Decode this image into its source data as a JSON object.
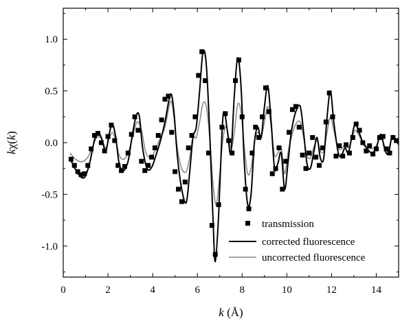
{
  "chart_data": {
    "type": "line",
    "xlabel_parts": [
      "k",
      " (Å)"
    ],
    "ylabel_parts": [
      "k",
      "χ(",
      "k",
      ")"
    ],
    "xlim": [
      0,
      15
    ],
    "ylim": [
      -1.3,
      1.3
    ],
    "x_ticks": [
      0,
      2,
      4,
      6,
      8,
      10,
      12,
      14
    ],
    "x_tick_labels": [
      "0",
      "2",
      "4",
      "6",
      "8",
      "10",
      "12",
      "14"
    ],
    "y_ticks": [
      -1.0,
      -0.5,
      0.0,
      0.5,
      1.0
    ],
    "y_tick_labels": [
      "-1.0",
      "-0.5",
      "0.0",
      "0.5",
      "1.0"
    ],
    "legend_position": "bottom-right",
    "series": [
      {
        "name": "transmission",
        "style": "markers",
        "color": "#000000",
        "x": [
          0.35,
          0.5,
          0.65,
          0.8,
          0.95,
          1.1,
          1.25,
          1.4,
          1.55,
          1.7,
          1.85,
          2.0,
          2.15,
          2.3,
          2.45,
          2.6,
          2.75,
          2.9,
          3.05,
          3.2,
          3.35,
          3.5,
          3.65,
          3.8,
          3.95,
          4.1,
          4.25,
          4.4,
          4.55,
          4.7,
          4.85,
          5.0,
          5.15,
          5.3,
          5.45,
          5.6,
          5.75,
          5.9,
          6.05,
          6.2,
          6.35,
          6.5,
          6.65,
          6.8,
          6.95,
          7.1,
          7.25,
          7.4,
          7.55,
          7.7,
          7.85,
          8.0,
          8.15,
          8.3,
          8.45,
          8.6,
          8.75,
          8.9,
          9.05,
          9.2,
          9.35,
          9.5,
          9.65,
          9.8,
          9.95,
          10.1,
          10.25,
          10.4,
          10.55,
          10.7,
          10.85,
          11.0,
          11.15,
          11.3,
          11.45,
          11.6,
          11.75,
          11.9,
          12.05,
          12.2,
          12.35,
          12.5,
          12.65,
          12.8,
          12.95,
          13.1,
          13.25,
          13.4,
          13.55,
          13.7,
          13.85,
          14.0,
          14.15,
          14.3,
          14.45,
          14.6,
          14.75,
          14.9
        ],
        "y": [
          -0.16,
          -0.22,
          -0.28,
          -0.31,
          -0.3,
          -0.22,
          -0.06,
          0.07,
          0.09,
          0.0,
          -0.08,
          0.06,
          0.17,
          0.02,
          -0.22,
          -0.27,
          -0.23,
          -0.1,
          0.08,
          0.25,
          0.12,
          -0.18,
          -0.27,
          -0.22,
          -0.14,
          -0.05,
          0.07,
          0.22,
          0.42,
          0.45,
          0.1,
          -0.28,
          -0.45,
          -0.57,
          -0.38,
          -0.05,
          0.07,
          0.25,
          0.65,
          0.88,
          0.6,
          -0.1,
          -0.8,
          -1.08,
          -0.6,
          0.15,
          0.28,
          0.02,
          -0.1,
          0.6,
          0.8,
          0.25,
          -0.45,
          -0.64,
          -0.1,
          0.15,
          0.05,
          0.25,
          0.53,
          0.3,
          -0.3,
          -0.25,
          -0.05,
          -0.45,
          -0.18,
          0.1,
          0.32,
          0.35,
          0.15,
          -0.12,
          -0.25,
          -0.1,
          0.05,
          -0.14,
          -0.22,
          -0.05,
          0.2,
          0.48,
          0.25,
          -0.13,
          -0.03,
          -0.13,
          -0.02,
          -0.1,
          0.05,
          0.18,
          0.12,
          0.0,
          -0.08,
          -0.03,
          -0.11,
          -0.06,
          0.05,
          0.06,
          -0.06,
          -0.1,
          0.05,
          0.02
        ]
      },
      {
        "name": "corrected fluorescence",
        "style": "line",
        "color": "#000000",
        "x": [
          0.3,
          0.5,
          0.7,
          0.85,
          1.0,
          1.2,
          1.4,
          1.55,
          1.7,
          1.9,
          2.05,
          2.2,
          2.35,
          2.5,
          2.7,
          2.9,
          3.05,
          3.25,
          3.4,
          3.55,
          3.75,
          3.95,
          4.15,
          4.35,
          4.55,
          4.8,
          4.95,
          5.1,
          5.3,
          5.5,
          5.65,
          5.8,
          5.95,
          6.1,
          6.25,
          6.4,
          6.55,
          6.7,
          6.8,
          6.95,
          7.1,
          7.2,
          7.35,
          7.5,
          7.65,
          7.8,
          7.95,
          8.1,
          8.25,
          8.4,
          8.55,
          8.7,
          8.85,
          9.0,
          9.15,
          9.3,
          9.45,
          9.6,
          9.75,
          9.9,
          10.05,
          10.2,
          10.4,
          10.6,
          10.75,
          10.9,
          11.05,
          11.2,
          11.35,
          11.5,
          11.65,
          11.8,
          11.95,
          12.1,
          12.3,
          12.45,
          12.6,
          12.75,
          12.9,
          13.05,
          13.2,
          13.4,
          13.6,
          13.8,
          14.0,
          14.2,
          14.4,
          14.55,
          14.7,
          14.85,
          15.0
        ],
        "y": [
          -0.15,
          -0.24,
          -0.31,
          -0.34,
          -0.32,
          -0.18,
          0.03,
          0.1,
          0.05,
          -0.08,
          0.08,
          0.18,
          0.05,
          -0.2,
          -0.27,
          -0.18,
          0.02,
          0.25,
          0.26,
          -0.05,
          -0.25,
          -0.24,
          -0.12,
          0.02,
          0.2,
          0.47,
          0.3,
          -0.12,
          -0.45,
          -0.58,
          -0.3,
          0.05,
          0.15,
          0.5,
          0.88,
          0.75,
          0.1,
          -0.75,
          -1.15,
          -0.7,
          0.1,
          0.3,
          0.1,
          -0.1,
          0.45,
          0.82,
          0.55,
          -0.2,
          -0.6,
          -0.5,
          0.0,
          0.15,
          0.05,
          0.35,
          0.55,
          0.2,
          -0.25,
          -0.2,
          -0.1,
          -0.45,
          -0.2,
          0.1,
          0.3,
          0.35,
          0.1,
          -0.2,
          -0.25,
          -0.1,
          0.05,
          -0.15,
          -0.15,
          0.25,
          0.5,
          0.2,
          -0.1,
          -0.12,
          -0.05,
          -0.1,
          0.05,
          0.18,
          0.12,
          0.0,
          -0.06,
          -0.1,
          -0.05,
          0.08,
          -0.08,
          -0.1,
          0.06,
          0.04,
          -0.02
        ]
      },
      {
        "name": "uncorrected fluorescence",
        "style": "line",
        "color": "#8a8a8a",
        "x": [
          0.3,
          0.5,
          0.7,
          0.9,
          1.1,
          1.3,
          1.5,
          1.7,
          1.9,
          2.05,
          2.2,
          2.35,
          2.5,
          2.7,
          2.9,
          3.1,
          3.3,
          3.5,
          3.7,
          3.95,
          4.15,
          4.35,
          4.55,
          4.8,
          4.95,
          5.1,
          5.3,
          5.5,
          5.65,
          5.8,
          5.95,
          6.1,
          6.25,
          6.4,
          6.55,
          6.7,
          6.85,
          7.0,
          7.15,
          7.3,
          7.5,
          7.65,
          7.8,
          7.95,
          8.1,
          8.25,
          8.4,
          8.55,
          8.7,
          8.85,
          9.0,
          9.15,
          9.3,
          9.45,
          9.6,
          9.75,
          9.9,
          10.05,
          10.2,
          10.4,
          10.6,
          10.75,
          10.9,
          11.05,
          11.2,
          11.35,
          11.5,
          11.65,
          11.8,
          11.95,
          12.1,
          12.3,
          12.45,
          12.6,
          12.75,
          12.9,
          13.05,
          13.2,
          13.4,
          13.6,
          13.8,
          14.0,
          14.2,
          14.4,
          14.55,
          14.7,
          14.85,
          15.0
        ],
        "y": [
          -0.1,
          -0.15,
          -0.18,
          -0.18,
          -0.14,
          -0.05,
          0.05,
          0.04,
          -0.05,
          0.04,
          0.1,
          0.02,
          -0.12,
          -0.16,
          -0.1,
          0.05,
          0.2,
          0.12,
          -0.1,
          -0.14,
          -0.05,
          0.05,
          0.15,
          0.4,
          0.25,
          -0.05,
          -0.25,
          -0.28,
          -0.15,
          0.05,
          0.05,
          0.2,
          0.38,
          0.35,
          0.05,
          -0.4,
          -0.6,
          -0.3,
          0.05,
          0.15,
          -0.05,
          0.1,
          0.37,
          0.3,
          -0.05,
          -0.3,
          -0.25,
          0.0,
          0.1,
          0.05,
          0.2,
          0.35,
          0.15,
          -0.12,
          -0.1,
          -0.05,
          -0.3,
          -0.1,
          0.05,
          0.18,
          0.2,
          0.05,
          -0.12,
          -0.15,
          -0.05,
          0.02,
          -0.08,
          -0.08,
          0.1,
          0.25,
          0.12,
          -0.05,
          -0.06,
          -0.02,
          -0.05,
          0.03,
          0.12,
          0.08,
          0.0,
          -0.04,
          -0.06,
          -0.03,
          0.05,
          -0.05,
          -0.06,
          0.04,
          0.03,
          -0.01
        ]
      }
    ]
  }
}
